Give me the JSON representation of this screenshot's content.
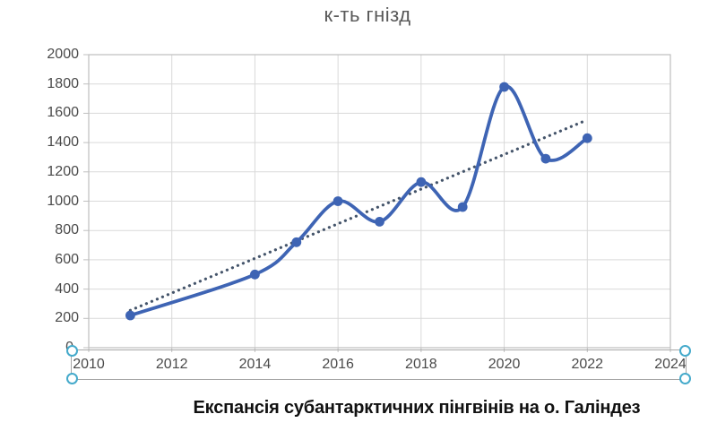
{
  "chart_data": {
    "type": "line",
    "title": "к-ть гнізд",
    "x": [
      2011,
      2014,
      2015,
      2016,
      2017,
      2018,
      2019,
      2020,
      2021,
      2022
    ],
    "series": [
      {
        "name": "к-ть гнізд",
        "values": [
          220,
          500,
          720,
          1000,
          860,
          1130,
          960,
          1780,
          1290,
          1430
        ],
        "color": "#3E64B4",
        "smooth": true,
        "markers": true
      }
    ],
    "trendline": {
      "style": "dotted",
      "color": "#44546A",
      "start": {
        "x": 2011,
        "value": 255
      },
      "end": {
        "x": 2022,
        "value": 1555
      }
    },
    "x_axis": {
      "min": 2010,
      "max": 2024,
      "tick_step": 2,
      "tick_labels": [
        "2010",
        "2012",
        "2014",
        "2016",
        "2018",
        "2020",
        "2022",
        "2024"
      ]
    },
    "y_axis": {
      "min": 0,
      "max": 2000,
      "tick_step": 200,
      "tick_labels": [
        "0",
        "200",
        "400",
        "600",
        "800",
        "1000",
        "1200",
        "1400",
        "1600",
        "1800",
        "2000"
      ]
    },
    "grid": true,
    "legend": "none"
  },
  "caption": "Експансія субантарктичних пінгвінів на о. Галіндез",
  "selection": {
    "target": "x-axis-labels"
  },
  "colors": {
    "series": "#3E64B4",
    "trendline": "#44546A",
    "gridline": "#D9D9D9",
    "plot_border": "#BFBFBF",
    "axis_text": "#4a4a4a",
    "title_text": "#595959",
    "caption_text": "#111111",
    "selection_handle": "#45AACB",
    "selection_border": "#A6A6A6"
  }
}
